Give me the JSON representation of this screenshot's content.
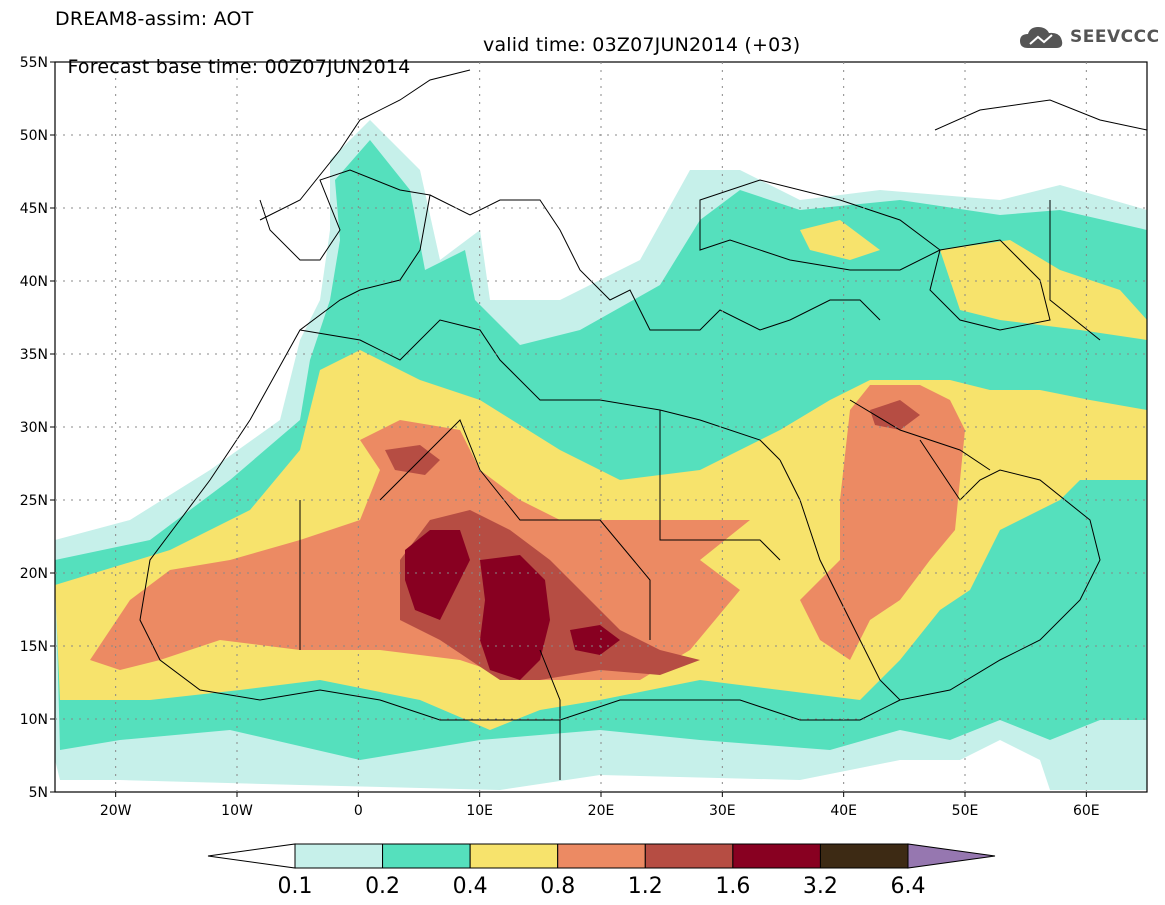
{
  "header": {
    "line1": "DREAM8-assim: AOT",
    "line2_base": "Forecast base time: 00Z07JUN2014",
    "line2_valid": "valid time: 03Z07JUN2014 (+03)"
  },
  "logo": {
    "text": "SEEVCCC",
    "icon": "cloud-icon"
  },
  "map": {
    "lon_range": [
      -25,
      65
    ],
    "lat_range": [
      5,
      55
    ],
    "lat_ticks": [
      {
        "value": 55,
        "label": "55N"
      },
      {
        "value": 50,
        "label": "50N"
      },
      {
        "value": 45,
        "label": "45N"
      },
      {
        "value": 40,
        "label": "40N"
      },
      {
        "value": 35,
        "label": "35N"
      },
      {
        "value": 30,
        "label": "30N"
      },
      {
        "value": 25,
        "label": "25N"
      },
      {
        "value": 20,
        "label": "20N"
      },
      {
        "value": 15,
        "label": "15N"
      },
      {
        "value": 10,
        "label": "10N"
      },
      {
        "value": 5,
        "label": "5N"
      }
    ],
    "lon_ticks": [
      {
        "value": -20,
        "label": "20W"
      },
      {
        "value": -10,
        "label": "10W"
      },
      {
        "value": 0,
        "label": "0"
      },
      {
        "value": 10,
        "label": "10E"
      },
      {
        "value": 20,
        "label": "20E"
      },
      {
        "value": 30,
        "label": "30E"
      },
      {
        "value": 40,
        "label": "40E"
      },
      {
        "value": 50,
        "label": "50E"
      },
      {
        "value": 60,
        "label": "60E"
      }
    ],
    "grid": "dotted"
  },
  "colorbar": {
    "labels": [
      "0.1",
      "0.2",
      "0.4",
      "0.8",
      "1.2",
      "1.6",
      "3.2",
      "6.4"
    ],
    "colors": [
      "#ffffff",
      "#c6f0ea",
      "#55e0bd",
      "#f7e36c",
      "#ec8a63",
      "#b64d43",
      "#880021",
      "#3d2a14",
      "#9677b0"
    ]
  }
}
